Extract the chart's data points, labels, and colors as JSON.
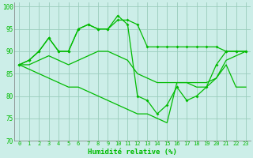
{
  "xlabel": "Humidité relative (%)",
  "background_color": "#cceee8",
  "grid_color": "#99ccbb",
  "line_color": "#00bb00",
  "x": [
    0,
    1,
    2,
    3,
    4,
    5,
    6,
    7,
    8,
    9,
    10,
    11,
    12,
    13,
    14,
    15,
    16,
    17,
    18,
    19,
    20,
    21,
    22,
    23
  ],
  "series1": [
    87,
    88,
    90,
    93,
    90,
    90,
    95,
    96,
    95,
    95,
    97,
    97,
    96,
    91,
    91,
    91,
    91,
    91,
    91,
    91,
    91,
    90,
    90,
    90
  ],
  "series2": [
    87,
    88,
    90,
    93,
    90,
    90,
    95,
    96,
    95,
    95,
    98,
    96,
    80,
    79,
    76,
    78,
    82,
    79,
    80,
    82,
    87,
    90,
    90,
    90
  ],
  "series3": [
    87,
    87,
    88,
    89,
    88,
    87,
    88,
    89,
    90,
    90,
    89,
    88,
    85,
    84,
    83,
    83,
    83,
    83,
    83,
    83,
    84,
    88,
    89,
    90
  ],
  "series4": [
    87,
    86,
    85,
    84,
    83,
    82,
    82,
    81,
    80,
    79,
    78,
    77,
    76,
    76,
    75,
    74,
    83,
    83,
    82,
    82,
    84,
    87,
    82,
    82
  ],
  "ylim": [
    70,
    101
  ],
  "yticks": [
    70,
    75,
    80,
    85,
    90,
    95,
    100
  ],
  "xlim": [
    -0.5,
    23.5
  ],
  "figsize": [
    3.2,
    2.0
  ],
  "dpi": 100
}
